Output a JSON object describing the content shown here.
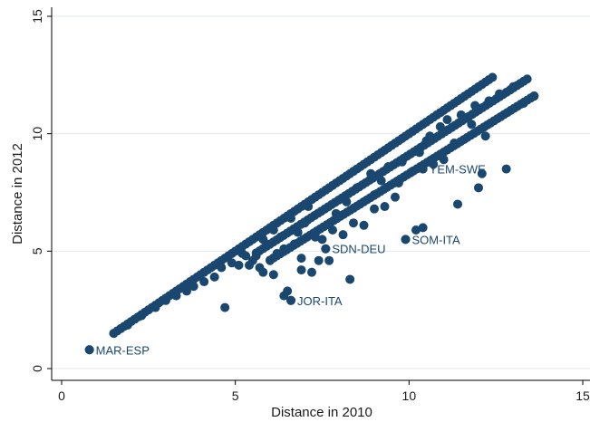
{
  "chart_data": {
    "type": "scatter",
    "title": "",
    "xlabel": "Distance in 2010",
    "ylabel": "Distance in 2012",
    "xlim": [
      0,
      15
    ],
    "ylim": [
      0,
      15
    ],
    "xticks": [
      0,
      5,
      10,
      15
    ],
    "yticks": [
      0,
      5,
      10,
      15
    ],
    "grid": "horizontal",
    "legend": "none",
    "marker_color": "#1a476f",
    "annotations": [
      {
        "label": "MAR-ESP",
        "x": 0.8,
        "y": 0.8
      },
      {
        "label": "JOR-ITA",
        "x": 6.6,
        "y": 2.9
      },
      {
        "label": "SDN-DEU",
        "x": 7.6,
        "y": 5.1
      },
      {
        "label": "SOM-ITA",
        "x": 9.9,
        "y": 5.5
      },
      {
        "label": "YEM-SWE",
        "x": 10.4,
        "y": 8.5
      }
    ],
    "bands": [
      {
        "x_start": 1.5,
        "x_end": 12.4,
        "slope": 1.0,
        "offset": 0.0,
        "count": 110
      },
      {
        "x_start": 5.6,
        "x_end": 13.4,
        "slope": 0.95,
        "offset": -0.4,
        "count": 80
      },
      {
        "x_start": 6.0,
        "x_end": 13.6,
        "slope": 0.92,
        "offset": -0.9,
        "count": 80
      }
    ],
    "points": [
      [
        0.8,
        0.8
      ],
      [
        1.5,
        1.5
      ],
      [
        1.9,
        1.85
      ],
      [
        2.3,
        2.25
      ],
      [
        4.7,
        2.6
      ],
      [
        6.4,
        3.1
      ],
      [
        6.6,
        2.9
      ],
      [
        6.5,
        3.3
      ],
      [
        6.9,
        4.2
      ],
      [
        6.1,
        4.0
      ],
      [
        5.8,
        4.1
      ],
      [
        5.4,
        4.4
      ],
      [
        5.6,
        4.8
      ],
      [
        6.0,
        4.6
      ],
      [
        6.2,
        4.9
      ],
      [
        6.4,
        5.1
      ],
      [
        6.7,
        5.3
      ],
      [
        6.9,
        4.7
      ],
      [
        7.2,
        4.1
      ],
      [
        7.4,
        4.6
      ],
      [
        7.6,
        5.1
      ],
      [
        7.7,
        4.6
      ],
      [
        8.3,
        3.8
      ],
      [
        7.3,
        5.6
      ],
      [
        7.8,
        5.9
      ],
      [
        8.1,
        5.7
      ],
      [
        8.4,
        6.2
      ],
      [
        8.7,
        6.1
      ],
      [
        9.0,
        6.8
      ],
      [
        9.3,
        6.9
      ],
      [
        9.6,
        7.3
      ],
      [
        9.9,
        5.5
      ],
      [
        10.2,
        5.9
      ],
      [
        10.4,
        6.0
      ],
      [
        9.7,
        7.9
      ],
      [
        10.1,
        8.4
      ],
      [
        10.4,
        8.5
      ],
      [
        10.7,
        8.7
      ],
      [
        11.0,
        8.9
      ],
      [
        11.4,
        7.0
      ],
      [
        12.0,
        7.7
      ],
      [
        12.1,
        8.3
      ],
      [
        12.8,
        8.5
      ],
      [
        10.5,
        9.7
      ],
      [
        10.9,
        10.3
      ],
      [
        11.3,
        9.6
      ],
      [
        11.8,
        10.4
      ],
      [
        12.2,
        9.9
      ],
      [
        8.9,
        8.3
      ],
      [
        9.4,
        8.6
      ],
      [
        9.0,
        7.4
      ],
      [
        8.2,
        7.1
      ],
      [
        7.9,
        6.6
      ],
      [
        7.0,
        6.2
      ],
      [
        6.3,
        5.6
      ],
      [
        5.9,
        5.3
      ],
      [
        5.3,
        4.8
      ],
      [
        4.9,
        4.5
      ],
      [
        4.6,
        4.3
      ],
      [
        4.4,
        3.9
      ],
      [
        4.1,
        3.7
      ],
      [
        3.8,
        3.5
      ],
      [
        3.6,
        3.3
      ],
      [
        3.3,
        3.1
      ],
      [
        3.0,
        2.9
      ],
      [
        2.7,
        2.6
      ],
      [
        5.1,
        4.4
      ],
      [
        5.5,
        4.6
      ],
      [
        5.7,
        4.3
      ],
      [
        6.8,
        5.8
      ],
      [
        7.5,
        5.5
      ],
      [
        8.5,
        7.7
      ],
      [
        9.2,
        8.0
      ],
      [
        9.8,
        8.8
      ],
      [
        10.3,
        9.2
      ],
      [
        10.6,
        9.9
      ],
      [
        11.1,
        10.6
      ],
      [
        11.5,
        10.8
      ],
      [
        11.9,
        11.2
      ],
      [
        12.3,
        11.4
      ],
      [
        12.6,
        11.7
      ],
      [
        13.0,
        12.0
      ],
      [
        13.3,
        11.3
      ],
      [
        13.6,
        11.6
      ],
      [
        6.1,
        5.9
      ],
      [
        6.6,
        6.4
      ],
      [
        7.1,
        6.9
      ],
      [
        5.2,
        4.9
      ],
      [
        5.8,
        5.5
      ]
    ]
  }
}
